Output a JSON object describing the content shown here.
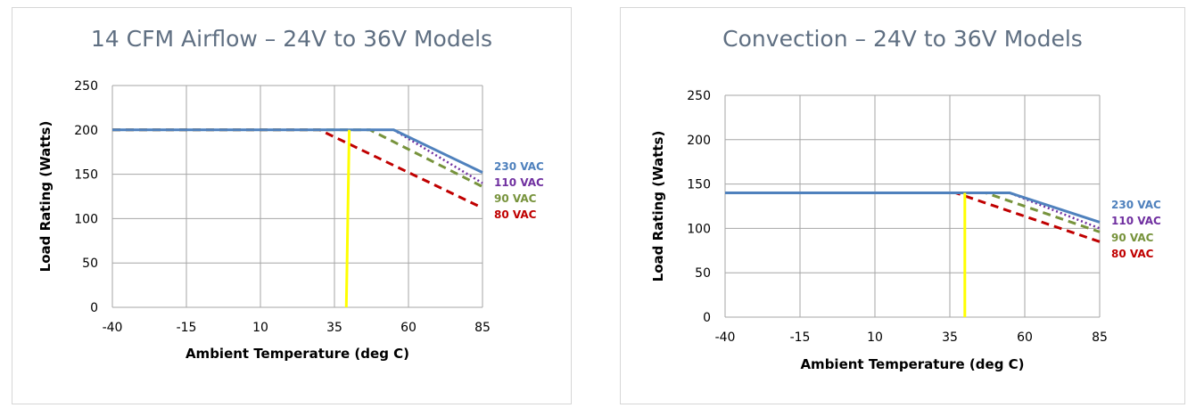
{
  "chart_data": [
    {
      "type": "line",
      "title": "14 CFM Airflow – 24V to 36V Models",
      "xlabel": "Ambient Temperature (deg C)",
      "ylabel": "Load Rating (Watts)",
      "xlim": [
        -40,
        85
      ],
      "ylim": [
        0,
        250
      ],
      "x_ticks": [
        "-40",
        "-15",
        "10",
        "35",
        "60",
        "85"
      ],
      "y_ticks": [
        "0",
        "50",
        "100",
        "150",
        "200",
        "250"
      ],
      "grid": true,
      "series": [
        {
          "name": "230 VAC",
          "color": "#4f81bd",
          "style": "solid",
          "x": [
            -40,
            55,
            85
          ],
          "y": [
            200,
            200,
            152
          ]
        },
        {
          "name": "110 VAC",
          "color": "#7030a0",
          "style": "dotted",
          "x": [
            -40,
            55,
            85
          ],
          "y": [
            200,
            200,
            140
          ]
        },
        {
          "name": "90 VAC",
          "color": "#77933c",
          "style": "dashed",
          "x": [
            -40,
            47,
            85
          ],
          "y": [
            200,
            200,
            136
          ]
        },
        {
          "name": "80 VAC",
          "color": "#c00000",
          "style": "dashed",
          "x": [
            -40,
            30,
            85
          ],
          "y": [
            200,
            200,
            112
          ]
        }
      ],
      "marker_line": {
        "color": "#ffff00",
        "x": [
          39,
          40
        ],
        "y": [
          0,
          200
        ]
      }
    },
    {
      "type": "line",
      "title": "Convection – 24V to 36V Models",
      "xlabel": "Ambient Temperature (deg C)",
      "ylabel": "Load Rating (Watts)",
      "xlim": [
        -40,
        85
      ],
      "ylim": [
        0,
        250
      ],
      "x_ticks": [
        "-40",
        "-15",
        "10",
        "35",
        "60",
        "85"
      ],
      "y_ticks": [
        "0",
        "50",
        "100",
        "150",
        "200",
        "250"
      ],
      "grid": true,
      "series": [
        {
          "name": "230 VAC",
          "color": "#4f81bd",
          "style": "solid",
          "x": [
            -40,
            55,
            85
          ],
          "y": [
            140,
            140,
            107
          ]
        },
        {
          "name": "110 VAC",
          "color": "#7030a0",
          "style": "dotted",
          "x": [
            -40,
            55,
            85
          ],
          "y": [
            140,
            140,
            100
          ]
        },
        {
          "name": "90 VAC",
          "color": "#77933c",
          "style": "dashed",
          "x": [
            -40,
            47,
            85
          ],
          "y": [
            140,
            140,
            96
          ]
        },
        {
          "name": "80 VAC",
          "color": "#c00000",
          "style": "dashed",
          "x": [
            -40,
            37,
            85
          ],
          "y": [
            140,
            140,
            85
          ]
        }
      ],
      "marker_line": {
        "color": "#ffff00",
        "x": [
          40,
          40
        ],
        "y": [
          0,
          140
        ]
      }
    }
  ]
}
